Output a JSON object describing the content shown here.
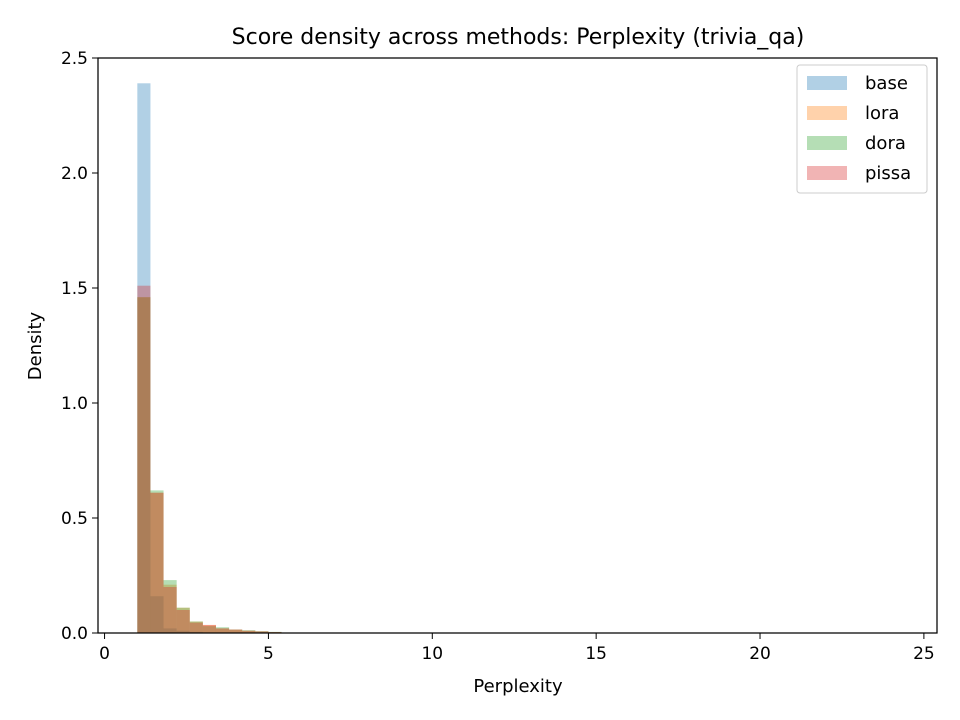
{
  "chart_data": {
    "type": "bar",
    "title": "Score density across methods: Perplexity (trivia_qa)",
    "xlabel": "Perplexity",
    "ylabel": "Density",
    "xlim": [
      -0.2,
      25.4
    ],
    "ylim": [
      0,
      2.5
    ],
    "xticks": [
      0,
      5,
      10,
      15,
      20,
      25
    ],
    "yticks": [
      0.0,
      0.5,
      1.0,
      1.5,
      2.0,
      2.5
    ],
    "xtick_labels": [
      "0",
      "5",
      "10",
      "15",
      "20",
      "25"
    ],
    "ytick_labels": [
      "0.0",
      "0.5",
      "1.0",
      "1.5",
      "2.0",
      "2.5"
    ],
    "grid": false,
    "legend_position": "top-right",
    "bin_edges": [
      1.0,
      1.4,
      1.8,
      2.2,
      2.6,
      3.0,
      3.4,
      3.8,
      4.2,
      4.6,
      5.0,
      5.4,
      5.8,
      6.2
    ],
    "series": [
      {
        "name": "base",
        "color": "#1f77b4",
        "values": [
          2.39,
          0.16,
          0.02,
          0.01,
          0.005,
          0.0,
          0.0,
          0.0,
          0.0,
          0.0,
          0.0,
          0.0,
          0.0
        ]
      },
      {
        "name": "lora",
        "color": "#ff7f0e",
        "values": [
          1.46,
          0.61,
          0.21,
          0.11,
          0.05,
          0.035,
          0.02,
          0.015,
          0.01,
          0.007,
          0.004,
          0.002,
          0.001
        ]
      },
      {
        "name": "dora",
        "color": "#2ca02c",
        "values": [
          1.46,
          0.62,
          0.23,
          0.11,
          0.05,
          0.03,
          0.025,
          0.015,
          0.012,
          0.008,
          0.005,
          0.002,
          0.001
        ]
      },
      {
        "name": "pissa",
        "color": "#d62728",
        "values": [
          1.51,
          0.61,
          0.2,
          0.1,
          0.045,
          0.035,
          0.02,
          0.015,
          0.01,
          0.007,
          0.004,
          0.002,
          0.001
        ]
      }
    ]
  }
}
